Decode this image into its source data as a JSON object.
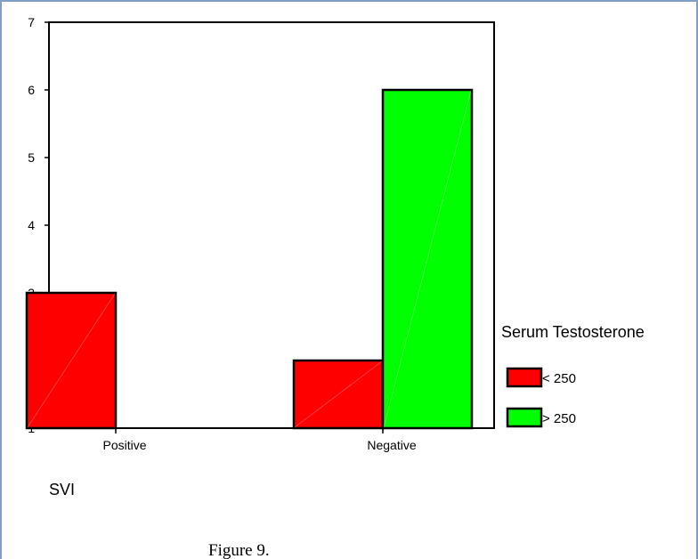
{
  "chart_data": {
    "type": "bar",
    "categories": [
      "Positive",
      "Negative"
    ],
    "series": [
      {
        "name": "< 250",
        "color": "#ff0000",
        "values": [
          3,
          2
        ]
      },
      {
        "name": "> 250",
        "color": "#00ff00",
        "values": [
          null,
          6
        ]
      }
    ],
    "xlabel": "SVI",
    "ylabel": "",
    "ylim": [
      1,
      7
    ],
    "yticks": [
      "1",
      "2",
      "3",
      "4",
      "5",
      "6",
      "7"
    ],
    "legend": {
      "title": "Serum Testosterone",
      "position": "right"
    },
    "grid": false
  },
  "caption": "Figure 9."
}
